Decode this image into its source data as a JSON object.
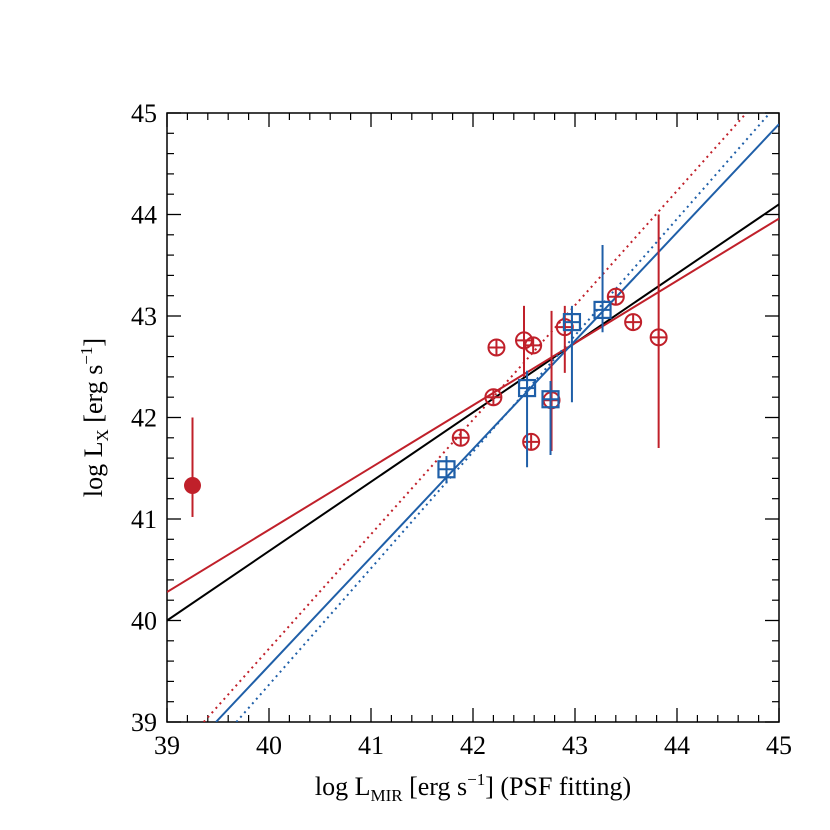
{
  "chart_data": {
    "type": "scatter",
    "xlabel": [
      "log L",
      "MIR",
      " [erg s",
      "−1",
      "] (PSF fitting)"
    ],
    "ylabel": [
      "log L",
      "X",
      " [erg s",
      "−1",
      "]"
    ],
    "xlim": [
      39,
      45
    ],
    "ylim": [
      39,
      45
    ],
    "xticks": [
      39,
      40,
      41,
      42,
      43,
      44,
      45
    ],
    "yticks": [
      39,
      40,
      41,
      42,
      43,
      44,
      45
    ],
    "minor_per_major": 5,
    "series": [
      {
        "marker": "line",
        "dash": false,
        "color": "#000000",
        "x": [
          39,
          45
        ],
        "y": [
          40.0,
          44.1
        ]
      },
      {
        "marker": "line",
        "dash": false,
        "color": "#c0202a",
        "x": [
          39,
          45
        ],
        "y": [
          40.28,
          43.96
        ]
      },
      {
        "marker": "line",
        "dash": true,
        "color": "#c0202a",
        "x": [
          39.36,
          44.68
        ],
        "y": [
          39,
          45
        ]
      },
      {
        "marker": "line",
        "dash": false,
        "color": "#1f5fa8",
        "x": [
          39.48,
          45
        ],
        "y": [
          39,
          44.89
        ]
      },
      {
        "marker": "line",
        "dash": true,
        "color": "#1f5fa8",
        "x": [
          39.68,
          44.91
        ],
        "y": [
          39,
          45
        ]
      },
      {
        "marker": "circle-plus",
        "color": "#c0202a",
        "x": [
          42.23,
          42.2,
          41.88,
          42.5,
          42.59,
          42.57,
          42.9,
          43.4,
          43.57,
          43.82,
          42.77
        ],
        "y": [
          42.69,
          42.2,
          41.8,
          42.76,
          42.71,
          41.76,
          42.89,
          43.19,
          42.94,
          42.79,
          42.17
        ],
        "ylow": [
          null,
          null,
          null,
          42.4,
          null,
          null,
          42.44,
          null,
          null,
          41.7,
          41.67
        ],
        "yhigh": [
          null,
          null,
          null,
          43.1,
          null,
          null,
          43.1,
          null,
          null,
          44.0,
          43.05
        ]
      },
      {
        "marker": "filled-circle",
        "color": "#c0202a",
        "x": [
          39.25
        ],
        "y": [
          41.33
        ],
        "ylow": [
          41.02
        ],
        "yhigh": [
          42.0
        ]
      },
      {
        "marker": "square-plus",
        "color": "#1f5fa8",
        "x": [
          41.74,
          42.53,
          42.76,
          42.97,
          43.27
        ],
        "y": [
          41.49,
          42.29,
          42.18,
          42.94,
          43.06
        ],
        "ylow": [
          41.35,
          41.51,
          41.63,
          42.15,
          42.84
        ],
        "yhigh": [
          41.62,
          42.46,
          42.36,
          43.1,
          43.7
        ]
      }
    ]
  }
}
